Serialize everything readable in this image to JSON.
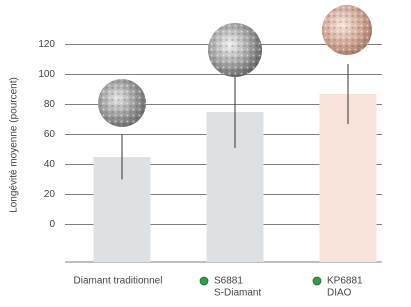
{
  "chart_data": {
    "type": "bar",
    "y_label": "Longévité moyenne (pourcent)",
    "categories": [
      [
        "Diamant traditionnel"
      ],
      [
        "S6881",
        "S-Diamant"
      ],
      [
        "KP6881",
        "DIAO"
      ]
    ],
    "values": [
      45,
      75,
      87
    ],
    "errors": [
      15,
      24,
      20
    ],
    "colors": [
      "#dde1e4",
      "#dde1e4",
      "#f8e3db"
    ],
    "ylim": [
      -25,
      135
    ],
    "yticks": [
      0,
      20,
      40,
      60,
      80,
      100,
      120
    ],
    "grid": true
  }
}
